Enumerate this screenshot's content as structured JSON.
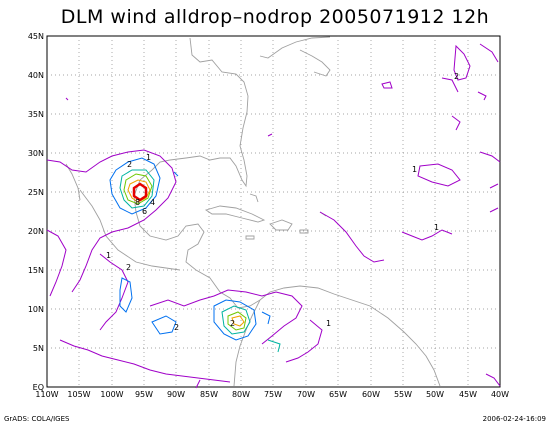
{
  "title": "DLM wind alldrop–nodrop 2005071912 12h",
  "lat_labels": [
    "45N",
    "40N",
    "35N",
    "30N",
    "25N",
    "20N",
    "15N",
    "10N",
    "5N",
    "EQ"
  ],
  "lon_labels": [
    "110W",
    "105W",
    "100W",
    "95W",
    "90W",
    "85W",
    "80W",
    "75W",
    "70W",
    "65W",
    "60W",
    "55W",
    "50W",
    "45W",
    "40W"
  ],
  "footer_left": "GrADS: COLA/IGES",
  "footer_right": "2006-02-24-16:09",
  "contour_labels": [
    "2",
    "1",
    "8",
    "6",
    "4",
    "2",
    "2",
    "2",
    "2",
    "1",
    "1",
    "1",
    "1"
  ],
  "colors": {
    "c1": "#a000c8",
    "c2": "#0070f0",
    "c3": "#00b4a0",
    "c4": "#70c800",
    "c6": "#f0a000",
    "c8": "#e60000",
    "coast": "#a0a0a0",
    "grid": "#888888"
  }
}
